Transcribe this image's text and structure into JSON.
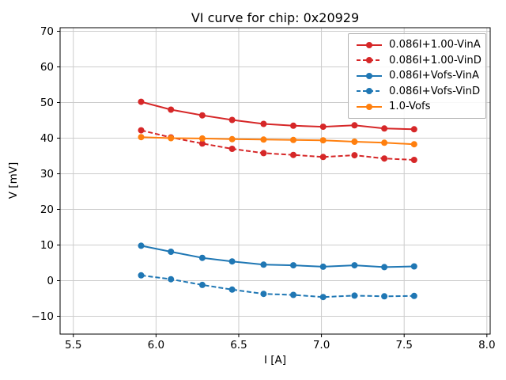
{
  "chart_data": {
    "type": "line",
    "title": "VI curve for chip: 0x20929",
    "xlabel": "I [A]",
    "ylabel": "V [mV]",
    "xlim": [
      5.42,
      8.02
    ],
    "ylim": [
      -15,
      71
    ],
    "xtick_values": [
      5.5,
      6.0,
      6.5,
      7.0,
      7.5,
      8.0
    ],
    "xtick_labels": [
      "5.5",
      "6.0",
      "6.5",
      "7.0",
      "7.5",
      "8.0"
    ],
    "ytick_values": [
      -10,
      0,
      10,
      20,
      30,
      40,
      50,
      60,
      70
    ],
    "ytick_labels": [
      "−10",
      "0",
      "10",
      "20",
      "30",
      "40",
      "50",
      "60",
      "70"
    ],
    "grid": true,
    "grid_color": "#cccccc",
    "legend_position": "upper right",
    "x": [
      5.91,
      6.09,
      6.28,
      6.46,
      6.65,
      6.83,
      7.01,
      7.2,
      7.38,
      7.56
    ],
    "series": [
      {
        "name": "0.086I+1.00-VinA",
        "color": "#d62728",
        "style": "solid",
        "marker": "circle",
        "values": [
          50.2,
          48.0,
          46.4,
          45.1,
          44.0,
          43.5,
          43.2,
          43.6,
          42.7,
          42.5
        ]
      },
      {
        "name": "0.086I+1.00-VinD",
        "color": "#d62728",
        "style": "dashed",
        "marker": "circle",
        "values": [
          42.2,
          40.2,
          38.5,
          37.0,
          35.8,
          35.3,
          34.7,
          35.2,
          34.3,
          33.9
        ]
      },
      {
        "name": "0.086I+Vofs-VinA",
        "color": "#1f77b4",
        "style": "solid",
        "marker": "circle",
        "values": [
          9.8,
          8.1,
          6.4,
          5.4,
          4.5,
          4.3,
          3.9,
          4.3,
          3.8,
          4.0
        ]
      },
      {
        "name": "0.086I+Vofs-VinD",
        "color": "#1f77b4",
        "style": "dashed",
        "marker": "circle",
        "values": [
          1.5,
          0.4,
          -1.2,
          -2.5,
          -3.7,
          -4.0,
          -4.6,
          -4.2,
          -4.4,
          -4.3
        ]
      },
      {
        "name": "1.0-Vofs",
        "color": "#ff7f0e",
        "style": "solid",
        "marker": "circle",
        "values": [
          40.3,
          40.0,
          39.9,
          39.7,
          39.6,
          39.5,
          39.4,
          39.0,
          38.7,
          38.3
        ]
      }
    ]
  }
}
